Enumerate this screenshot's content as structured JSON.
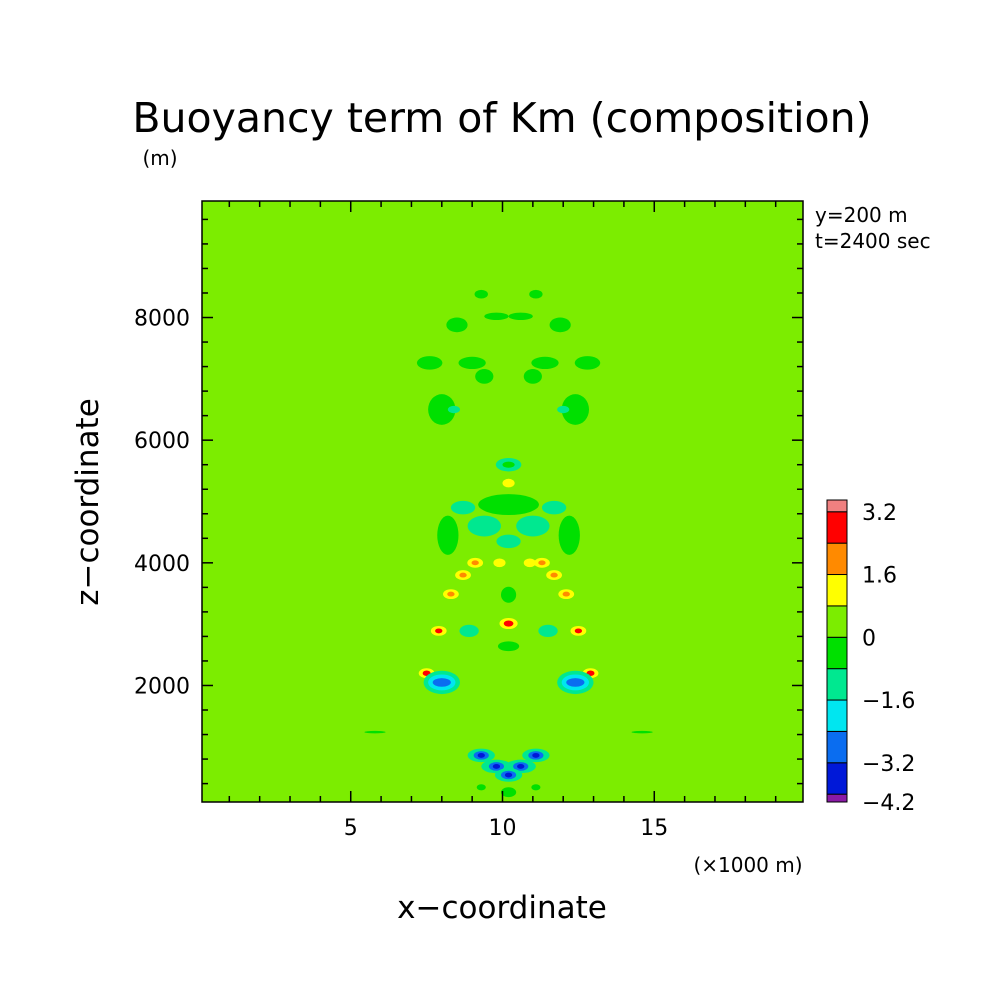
{
  "chart_data": {
    "type": "heatmap",
    "title": "Buoyancy term of Km (composition)",
    "xlabel": "x−coordinate",
    "ylabel": "z−coordinate",
    "x_unit": "(×1000 m)",
    "y_unit": "(m)",
    "info": [
      "y=200 m",
      "t=2400 sec"
    ],
    "xlim": [
      0.1,
      19.9
    ],
    "ylim": [
      100,
      9900
    ],
    "x_ticks": [
      5,
      10,
      15
    ],
    "y_ticks": [
      2000,
      4000,
      6000,
      8000
    ],
    "x_ticks_minor": [
      1,
      2,
      3,
      4,
      6,
      7,
      8,
      9,
      11,
      12,
      13,
      14,
      16,
      17,
      18,
      19
    ],
    "y_ticks_minor": [
      400,
      800,
      1200,
      1600,
      2400,
      2800,
      3200,
      3600,
      4400,
      4800,
      5200,
      5600,
      6400,
      6800,
      7200,
      7600,
      8400,
      8800,
      9200,
      9600
    ],
    "background_level": 0.4,
    "colorbar": {
      "tick_labels": [
        "3.2",
        "1.6",
        "0",
        "−1.6",
        "−3.2",
        "−4.2"
      ],
      "tick_values": [
        3.2,
        1.6,
        0,
        -1.6,
        -3.2,
        -4.2
      ],
      "levels": [
        {
          "range": [
            -4.2,
            -4.0
          ],
          "color": "#8a1aa6"
        },
        {
          "range": [
            -4.0,
            -3.2
          ],
          "color": "#0018d8"
        },
        {
          "range": [
            -3.2,
            -2.4
          ],
          "color": "#0a6df0"
        },
        {
          "range": [
            -2.4,
            -1.6
          ],
          "color": "#00e6f0"
        },
        {
          "range": [
            -1.6,
            -0.8
          ],
          "color": "#00e890"
        },
        {
          "range": [
            -0.8,
            0.0
          ],
          "color": "#00e000"
        },
        {
          "range": [
            0.0,
            0.8
          ],
          "color": "#7ced00"
        },
        {
          "range": [
            0.8,
            1.6
          ],
          "color": "#ffff00"
        },
        {
          "range": [
            1.6,
            2.4
          ],
          "color": "#ff8a00"
        },
        {
          "range": [
            2.4,
            3.2
          ],
          "color": "#ff0000"
        },
        {
          "range": [
            3.2,
            3.5
          ],
          "color": "#f08080"
        }
      ]
    },
    "features": [
      {
        "x": 9.3,
        "z": 8380,
        "rx": 0.22,
        "rz": 70,
        "level": -0.4
      },
      {
        "x": 11.1,
        "z": 8380,
        "rx": 0.22,
        "rz": 70,
        "level": -0.4
      },
      {
        "x": 9.8,
        "z": 8020,
        "rx": 0.4,
        "rz": 60,
        "level": -0.4
      },
      {
        "x": 10.6,
        "z": 8020,
        "rx": 0.4,
        "rz": 60,
        "level": -0.4
      },
      {
        "x": 8.5,
        "z": 7880,
        "rx": 0.35,
        "rz": 120,
        "level": -0.4
      },
      {
        "x": 11.9,
        "z": 7880,
        "rx": 0.35,
        "rz": 120,
        "level": -0.4
      },
      {
        "x": 7.6,
        "z": 7260,
        "rx": 0.42,
        "rz": 110,
        "level": -0.4
      },
      {
        "x": 9.0,
        "z": 7260,
        "rx": 0.45,
        "rz": 100,
        "level": -0.4
      },
      {
        "x": 11.4,
        "z": 7260,
        "rx": 0.45,
        "rz": 100,
        "level": -0.4
      },
      {
        "x": 12.8,
        "z": 7260,
        "rx": 0.42,
        "rz": 110,
        "level": -0.4
      },
      {
        "x": 9.4,
        "z": 7040,
        "rx": 0.3,
        "rz": 120,
        "level": -0.4
      },
      {
        "x": 11.0,
        "z": 7040,
        "rx": 0.3,
        "rz": 120,
        "level": -0.4
      },
      {
        "x": 8.0,
        "z": 6500,
        "rx": 0.45,
        "rz": 250,
        "level": -0.4
      },
      {
        "x": 12.4,
        "z": 6500,
        "rx": 0.45,
        "rz": 250,
        "level": -0.4
      },
      {
        "x": 8.4,
        "z": 6500,
        "rx": 0.2,
        "rz": 60,
        "level": -1.2
      },
      {
        "x": 12.0,
        "z": 6500,
        "rx": 0.2,
        "rz": 60,
        "level": -1.2
      },
      {
        "x": 10.2,
        "z": 5600,
        "rx": 0.42,
        "rz": 110,
        "level": -1.2
      },
      {
        "x": 10.2,
        "z": 5600,
        "rx": 0.2,
        "rz": 50,
        "level": -0.4
      },
      {
        "x": 10.2,
        "z": 5300,
        "rx": 0.2,
        "rz": 70,
        "level": 1.2
      },
      {
        "x": 10.2,
        "z": 4950,
        "rx": 1.0,
        "rz": 170,
        "level": -0.4
      },
      {
        "x": 8.7,
        "z": 4900,
        "rx": 0.4,
        "rz": 110,
        "level": -1.2
      },
      {
        "x": 11.7,
        "z": 4900,
        "rx": 0.4,
        "rz": 110,
        "level": -1.2
      },
      {
        "x": 8.2,
        "z": 4450,
        "rx": 0.35,
        "rz": 320,
        "level": -0.4
      },
      {
        "x": 12.2,
        "z": 4450,
        "rx": 0.35,
        "rz": 320,
        "level": -0.4
      },
      {
        "x": 10.2,
        "z": 4350,
        "rx": 0.4,
        "rz": 110,
        "level": -1.2
      },
      {
        "x": 9.4,
        "z": 4600,
        "rx": 0.55,
        "rz": 170,
        "level": -1.2
      },
      {
        "x": 11.0,
        "z": 4600,
        "rx": 0.55,
        "rz": 170,
        "level": -1.2
      },
      {
        "x": 9.9,
        "z": 4000,
        "rx": 0.2,
        "rz": 70,
        "level": 1.2
      },
      {
        "x": 10.9,
        "z": 4000,
        "rx": 0.2,
        "rz": 70,
        "level": 1.2
      },
      {
        "x": 9.1,
        "z": 4000,
        "rx": 0.26,
        "rz": 80,
        "level": 1.2
      },
      {
        "x": 9.1,
        "z": 4000,
        "rx": 0.12,
        "rz": 40,
        "level": 2.0
      },
      {
        "x": 11.3,
        "z": 4000,
        "rx": 0.26,
        "rz": 80,
        "level": 1.2
      },
      {
        "x": 11.3,
        "z": 4000,
        "rx": 0.12,
        "rz": 40,
        "level": 2.0
      },
      {
        "x": 8.7,
        "z": 3800,
        "rx": 0.26,
        "rz": 80,
        "level": 1.2
      },
      {
        "x": 8.7,
        "z": 3800,
        "rx": 0.12,
        "rz": 40,
        "level": 2.0
      },
      {
        "x": 11.7,
        "z": 3800,
        "rx": 0.26,
        "rz": 80,
        "level": 1.2
      },
      {
        "x": 11.7,
        "z": 3800,
        "rx": 0.12,
        "rz": 40,
        "level": 2.0
      },
      {
        "x": 10.2,
        "z": 3480,
        "rx": 0.25,
        "rz": 130,
        "level": -0.4
      },
      {
        "x": 8.3,
        "z": 3490,
        "rx": 0.26,
        "rz": 80,
        "level": 1.2
      },
      {
        "x": 8.3,
        "z": 3490,
        "rx": 0.12,
        "rz": 40,
        "level": 2.0
      },
      {
        "x": 12.1,
        "z": 3490,
        "rx": 0.26,
        "rz": 80,
        "level": 1.2
      },
      {
        "x": 12.1,
        "z": 3490,
        "rx": 0.12,
        "rz": 40,
        "level": 2.0
      },
      {
        "x": 10.2,
        "z": 3010,
        "rx": 0.3,
        "rz": 90,
        "level": 1.2
      },
      {
        "x": 10.2,
        "z": 3010,
        "rx": 0.16,
        "rz": 50,
        "level": 2.8
      },
      {
        "x": 7.9,
        "z": 2890,
        "rx": 0.26,
        "rz": 80,
        "level": 1.2
      },
      {
        "x": 7.9,
        "z": 2890,
        "rx": 0.12,
        "rz": 40,
        "level": 2.8
      },
      {
        "x": 12.5,
        "z": 2890,
        "rx": 0.26,
        "rz": 80,
        "level": 1.2
      },
      {
        "x": 12.5,
        "z": 2890,
        "rx": 0.12,
        "rz": 40,
        "level": 2.8
      },
      {
        "x": 8.9,
        "z": 2890,
        "rx": 0.32,
        "rz": 100,
        "level": -1.2
      },
      {
        "x": 11.5,
        "z": 2890,
        "rx": 0.32,
        "rz": 100,
        "level": -1.2
      },
      {
        "x": 10.2,
        "z": 2640,
        "rx": 0.35,
        "rz": 80,
        "level": -0.4
      },
      {
        "x": 7.5,
        "z": 2200,
        "rx": 0.26,
        "rz": 80,
        "level": 1.2
      },
      {
        "x": 7.5,
        "z": 2200,
        "rx": 0.13,
        "rz": 45,
        "level": 2.8
      },
      {
        "x": 12.9,
        "z": 2200,
        "rx": 0.26,
        "rz": 80,
        "level": 1.2
      },
      {
        "x": 12.9,
        "z": 2200,
        "rx": 0.13,
        "rz": 45,
        "level": 2.8
      },
      {
        "x": 8.0,
        "z": 2050,
        "rx": 0.6,
        "rz": 190,
        "level": -1.2
      },
      {
        "x": 8.0,
        "z": 2050,
        "rx": 0.45,
        "rz": 130,
        "level": -2.0
      },
      {
        "x": 8.0,
        "z": 2050,
        "rx": 0.3,
        "rz": 70,
        "level": -2.8
      },
      {
        "x": 12.4,
        "z": 2050,
        "rx": 0.6,
        "rz": 190,
        "level": -1.2
      },
      {
        "x": 12.4,
        "z": 2050,
        "rx": 0.45,
        "rz": 130,
        "level": -2.0
      },
      {
        "x": 12.4,
        "z": 2050,
        "rx": 0.3,
        "rz": 70,
        "level": -2.8
      },
      {
        "x": 5.8,
        "z": 1240,
        "rx": 0.35,
        "rz": 20,
        "level": -0.4
      },
      {
        "x": 14.6,
        "z": 1240,
        "rx": 0.35,
        "rz": 20,
        "level": -0.4
      },
      {
        "x": 9.3,
        "z": 860,
        "rx": 0.45,
        "rz": 110,
        "level": -1.2
      },
      {
        "x": 9.3,
        "z": 860,
        "rx": 0.25,
        "rz": 70,
        "level": -2.8
      },
      {
        "x": 9.3,
        "z": 860,
        "rx": 0.12,
        "rz": 40,
        "level": -3.6
      },
      {
        "x": 11.1,
        "z": 860,
        "rx": 0.45,
        "rz": 110,
        "level": -1.2
      },
      {
        "x": 11.1,
        "z": 860,
        "rx": 0.25,
        "rz": 70,
        "level": -2.8
      },
      {
        "x": 11.1,
        "z": 860,
        "rx": 0.12,
        "rz": 40,
        "level": -3.6
      },
      {
        "x": 9.8,
        "z": 680,
        "rx": 0.5,
        "rz": 110,
        "level": -1.2
      },
      {
        "x": 9.8,
        "z": 680,
        "rx": 0.25,
        "rz": 70,
        "level": -2.8
      },
      {
        "x": 9.8,
        "z": 680,
        "rx": 0.12,
        "rz": 40,
        "level": -3.6
      },
      {
        "x": 10.6,
        "z": 680,
        "rx": 0.5,
        "rz": 110,
        "level": -1.2
      },
      {
        "x": 10.6,
        "z": 680,
        "rx": 0.25,
        "rz": 70,
        "level": -2.8
      },
      {
        "x": 10.6,
        "z": 680,
        "rx": 0.12,
        "rz": 40,
        "level": -3.6
      },
      {
        "x": 10.2,
        "z": 540,
        "rx": 0.45,
        "rz": 110,
        "level": -1.2
      },
      {
        "x": 10.2,
        "z": 540,
        "rx": 0.25,
        "rz": 70,
        "level": -2.8
      },
      {
        "x": 10.2,
        "z": 540,
        "rx": 0.12,
        "rz": 40,
        "level": -3.6
      },
      {
        "x": 10.2,
        "z": 260,
        "rx": 0.25,
        "rz": 80,
        "level": -0.4
      },
      {
        "x": 9.3,
        "z": 340,
        "rx": 0.15,
        "rz": 50,
        "level": -0.4
      },
      {
        "x": 11.1,
        "z": 340,
        "rx": 0.15,
        "rz": 50,
        "level": -0.4
      }
    ]
  }
}
